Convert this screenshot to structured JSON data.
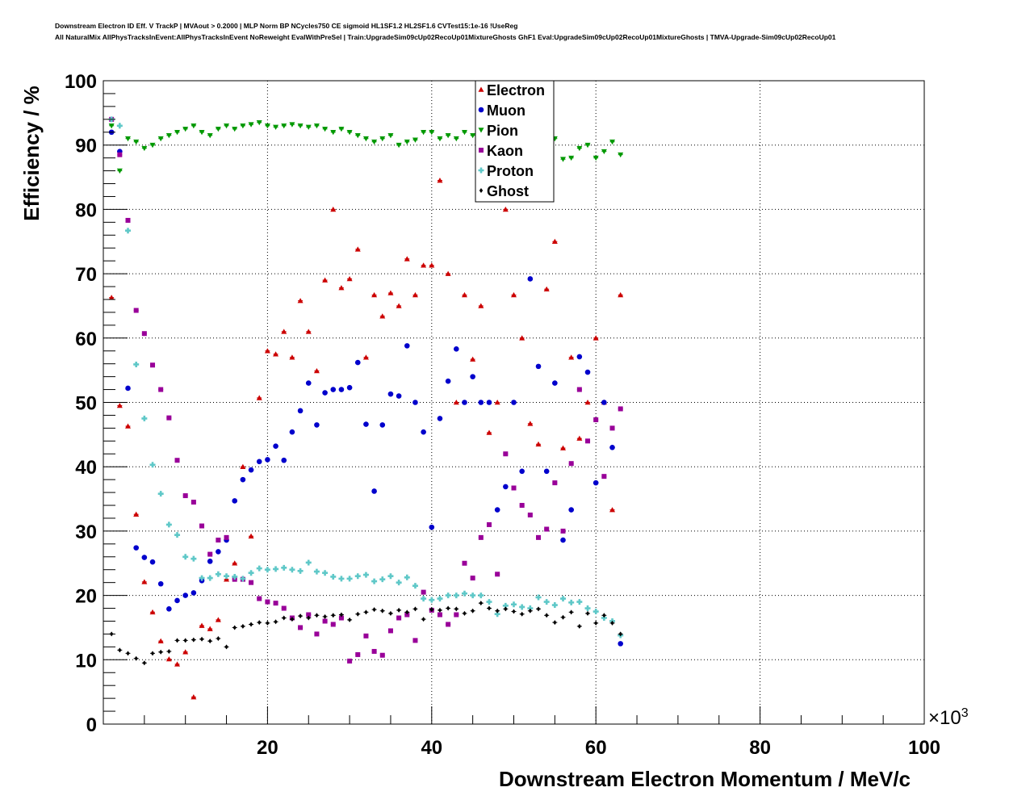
{
  "title_lines": [
    "Downstream Electron ID Eff. V TrackP | MVAout > 0.2000 | MLP Norm BP NCycles750 CE sigmoid HL1SF1.2 HL2SF1.6 CVTest15:1e-16 !UseReg",
    "All NaturalMix AllPhysTracksInEvent:AllPhysTracksInEvent NoReweight EvalWithPreSel | Train:UpgradeSim09cUp02RecoUp01MixtureGhosts GhF1 Eval:UpgradeSim09cUp02RecoUp01MixtureGhosts | TMVA-Upgrade-Sim09cUp02RecoUp01"
  ],
  "chart_data": {
    "type": "scatter",
    "xlabel": "Downstream Electron Momentum / MeV/c",
    "ylabel": "Efficiency / %",
    "x_exponent_label": "×10",
    "x_exponent": "3",
    "xlim": [
      0,
      100
    ],
    "ylim": [
      0,
      100
    ],
    "x_ticks": [
      20,
      40,
      60,
      80,
      100
    ],
    "y_ticks": [
      0,
      10,
      20,
      30,
      40,
      50,
      60,
      70,
      80,
      90,
      100
    ],
    "grid": true,
    "legend_position": "top-center",
    "series": [
      {
        "name": "Electron",
        "color": "#cc0000",
        "marker": "triangle-up",
        "x": [
          1,
          2,
          3,
          4,
          5,
          6,
          7,
          8,
          9,
          10,
          11,
          12,
          13,
          14,
          15,
          16,
          17,
          18,
          19,
          20,
          21,
          22,
          23,
          24,
          25,
          26,
          27,
          28,
          29,
          30,
          31,
          32,
          33,
          34,
          35,
          36,
          37,
          38,
          39,
          40,
          41,
          42,
          43,
          44,
          45,
          46,
          47,
          48,
          49,
          50,
          51,
          52,
          53,
          54,
          55,
          56,
          57,
          58,
          59,
          60,
          61,
          62,
          63
        ],
        "y": [
          66.3,
          49.5,
          46.3,
          32.6,
          22.1,
          17.4,
          12.9,
          10.1,
          9.3,
          11.2,
          4.2,
          15.3,
          14.8,
          16.2,
          22.5,
          25.0,
          40.0,
          29.2,
          50.7,
          58.0,
          57.5,
          61.0,
          57.0,
          65.8,
          61.0,
          54.9,
          69.0,
          80.0,
          67.8,
          69.2,
          73.8,
          57.0,
          66.7,
          63.4,
          67.0,
          65.0,
          72.3,
          66.7,
          71.3,
          71.3,
          84.5,
          70.0,
          50.0,
          66.7,
          56.7,
          65.0,
          45.3,
          50.0,
          80.0,
          66.7,
          60.0,
          46.7,
          43.5,
          67.6,
          75.0,
          42.9,
          57.0,
          44.4,
          50.0,
          60.0,
          50.0,
          33.3,
          66.7
        ]
      },
      {
        "name": "Muon",
        "color": "#0000cc",
        "marker": "circle",
        "x": [
          1,
          2,
          3,
          4,
          5,
          6,
          7,
          8,
          9,
          10,
          11,
          12,
          13,
          14,
          15,
          16,
          17,
          18,
          19,
          20,
          21,
          22,
          23,
          24,
          25,
          26,
          27,
          28,
          29,
          30,
          31,
          32,
          33,
          34,
          35,
          36,
          37,
          38,
          39,
          40,
          41,
          42,
          43,
          44,
          45,
          46,
          47,
          48,
          49,
          50,
          51,
          52,
          53,
          54,
          55,
          56,
          57,
          58,
          59,
          60,
          61,
          62,
          63
        ],
        "y": [
          92.0,
          89.0,
          52.2,
          27.4,
          25.9,
          25.2,
          21.8,
          17.9,
          19.2,
          20.0,
          20.4,
          22.3,
          25.3,
          26.8,
          28.6,
          34.7,
          38.0,
          39.5,
          40.8,
          41.1,
          43.2,
          41.0,
          45.4,
          48.7,
          53.0,
          46.5,
          51.5,
          52.0,
          52.0,
          52.3,
          56.2,
          46.6,
          36.2,
          46.5,
          51.3,
          51.0,
          58.8,
          50.0,
          45.4,
          30.6,
          47.5,
          53.3,
          58.3,
          50.0,
          54.0,
          50.0,
          50.0,
          33.3,
          36.9,
          50.0,
          39.3,
          69.2,
          55.6,
          39.3,
          53.0,
          28.6,
          33.3,
          57.1,
          54.7,
          37.5,
          50.0,
          43.0,
          12.5
        ]
      },
      {
        "name": "Pion",
        "color": "#009900",
        "marker": "triangle-down",
        "x": [
          1,
          2,
          3,
          4,
          5,
          6,
          7,
          8,
          9,
          10,
          11,
          12,
          13,
          14,
          15,
          16,
          17,
          18,
          19,
          20,
          21,
          22,
          23,
          24,
          25,
          26,
          27,
          28,
          29,
          30,
          31,
          32,
          33,
          34,
          35,
          36,
          37,
          38,
          39,
          40,
          41,
          42,
          43,
          44,
          45,
          46,
          47,
          48,
          49,
          50,
          51,
          52,
          53,
          54,
          55,
          56,
          57,
          58,
          59,
          60,
          61,
          62,
          63
        ],
        "y": [
          93.0,
          86.0,
          91.0,
          90.5,
          89.5,
          90.0,
          91.0,
          91.5,
          92.0,
          92.5,
          93.0,
          92.0,
          91.5,
          92.5,
          93.0,
          92.5,
          93.0,
          93.2,
          93.5,
          93.0,
          92.8,
          93.0,
          93.2,
          93.0,
          92.8,
          93.0,
          92.5,
          92.0,
          92.5,
          92.0,
          91.5,
          91.0,
          90.5,
          91.0,
          91.5,
          90.0,
          90.5,
          90.8,
          92.0,
          92.0,
          91.0,
          91.5,
          91.0,
          92.0,
          91.5,
          91.0,
          90.0,
          89.0,
          91.0,
          92.0,
          88.0,
          87.5,
          89.0,
          90.0,
          91.0,
          87.8,
          88.0,
          89.5,
          90.0,
          88.0,
          89.0,
          90.5,
          88.5
        ]
      },
      {
        "name": "Kaon",
        "color": "#990099",
        "marker": "square",
        "x": [
          1,
          2,
          3,
          4,
          5,
          6,
          7,
          8,
          9,
          10,
          11,
          12,
          13,
          14,
          15,
          16,
          17,
          18,
          19,
          20,
          21,
          22,
          23,
          24,
          25,
          26,
          27,
          28,
          29,
          30,
          31,
          32,
          33,
          34,
          35,
          36,
          37,
          38,
          39,
          40,
          41,
          42,
          43,
          44,
          45,
          46,
          47,
          48,
          49,
          50,
          51,
          52,
          53,
          54,
          55,
          56,
          57,
          58,
          59,
          60,
          61,
          62,
          63
        ],
        "y": [
          94.0,
          88.5,
          78.3,
          64.3,
          60.7,
          55.8,
          52.0,
          47.6,
          41.0,
          35.5,
          34.5,
          30.8,
          26.4,
          28.6,
          29.0,
          22.5,
          22.5,
          22.0,
          19.5,
          19.0,
          18.8,
          18.0,
          16.5,
          15.0,
          17.0,
          14.0,
          16.0,
          15.5,
          16.5,
          9.8,
          10.8,
          13.7,
          11.3,
          10.7,
          14.5,
          16.5,
          17.0,
          13.0,
          20.5,
          17.7,
          17.0,
          15.5,
          17.0,
          25.0,
          22.7,
          29.0,
          31.0,
          23.3,
          42.0,
          36.7,
          34.0,
          32.5,
          29.0,
          30.3,
          37.5,
          30.0,
          40.5,
          52.0,
          44.0,
          47.3,
          38.5,
          46.0,
          49.0
        ]
      },
      {
        "name": "Proton",
        "color": "#5fc8c8",
        "marker": "cross",
        "x": [
          1,
          2,
          3,
          4,
          5,
          6,
          7,
          8,
          9,
          10,
          11,
          12,
          13,
          14,
          15,
          16,
          17,
          18,
          19,
          20,
          21,
          22,
          23,
          24,
          25,
          26,
          27,
          28,
          29,
          30,
          31,
          32,
          33,
          34,
          35,
          36,
          37,
          38,
          39,
          40,
          41,
          42,
          43,
          44,
          45,
          46,
          47,
          48,
          49,
          50,
          51,
          52,
          53,
          54,
          55,
          56,
          57,
          58,
          59,
          60,
          61,
          62,
          63
        ],
        "y": [
          94.0,
          93.0,
          76.7,
          55.9,
          47.5,
          40.3,
          35.8,
          31.0,
          29.4,
          26.0,
          25.7,
          22.7,
          22.7,
          23.3,
          23.0,
          22.9,
          22.6,
          23.5,
          24.2,
          24.0,
          24.1,
          24.3,
          24.0,
          23.8,
          25.1,
          23.7,
          23.5,
          22.9,
          22.6,
          22.6,
          23.0,
          23.2,
          22.2,
          22.5,
          23.0,
          22.0,
          22.8,
          21.5,
          19.5,
          19.3,
          19.5,
          20.0,
          20.0,
          20.3,
          20.0,
          20.0,
          19.0,
          17.1,
          18.4,
          18.6,
          18.2,
          18.0,
          19.7,
          19.0,
          18.5,
          19.5,
          18.9,
          19.0,
          18.0,
          17.5,
          16.5,
          16.0,
          13.8
        ]
      },
      {
        "name": "Ghost",
        "color": "#000000",
        "marker": "diamond",
        "x": [
          1,
          2,
          3,
          4,
          5,
          6,
          7,
          8,
          9,
          10,
          11,
          12,
          13,
          14,
          15,
          16,
          17,
          18,
          19,
          20,
          21,
          22,
          23,
          24,
          25,
          26,
          27,
          28,
          29,
          30,
          31,
          32,
          33,
          34,
          35,
          36,
          37,
          38,
          39,
          40,
          41,
          42,
          43,
          44,
          45,
          46,
          47,
          48,
          49,
          50,
          51,
          52,
          53,
          54,
          55,
          56,
          57,
          58,
          59,
          60,
          61,
          62,
          63
        ],
        "y": [
          14.0,
          11.5,
          11.0,
          10.2,
          9.5,
          11.0,
          11.2,
          11.3,
          13.0,
          13.0,
          13.1,
          13.2,
          12.9,
          13.3,
          12.0,
          15.0,
          15.2,
          15.5,
          15.8,
          15.7,
          15.9,
          16.5,
          16.3,
          16.8,
          16.5,
          16.9,
          16.7,
          16.9,
          17.0,
          16.2,
          17.1,
          17.4,
          17.8,
          17.6,
          17.2,
          17.7,
          17.4,
          17.9,
          16.3,
          17.8,
          17.7,
          18.0,
          17.9,
          17.2,
          17.6,
          18.8,
          18.0,
          17.6,
          17.9,
          17.5,
          17.1,
          17.6,
          17.9,
          16.9,
          15.8,
          16.6,
          17.4,
          15.2,
          17.2,
          15.7,
          16.9,
          15.7,
          14.0
        ]
      }
    ]
  }
}
